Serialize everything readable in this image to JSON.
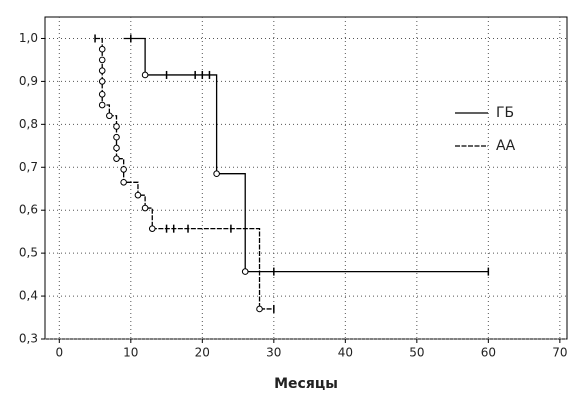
{
  "chart_data": {
    "type": "survival-step",
    "x_label": "Месяцы",
    "xlim": [
      -2,
      71
    ],
    "ylim": [
      0.3,
      1.05
    ],
    "xticks": [
      0,
      10,
      20,
      30,
      40,
      50,
      60,
      70
    ],
    "yticks": [
      {
        "value": 0.3,
        "label": "0,3"
      },
      {
        "value": 0.4,
        "label": "0,4"
      },
      {
        "value": 0.5,
        "label": "0,5"
      },
      {
        "value": 0.6,
        "label": "0,6"
      },
      {
        "value": 0.7,
        "label": "0,7"
      },
      {
        "value": 0.8,
        "label": "0,8"
      },
      {
        "value": 0.9,
        "label": "0,9"
      },
      {
        "value": 1.0,
        "label": "1,0"
      }
    ],
    "grid": true,
    "series": [
      {
        "name": "ГБ",
        "color": "#000000",
        "dash": false,
        "x": [
          9,
          12,
          22,
          26,
          60
        ],
        "values": [
          1.0,
          0.915,
          0.685,
          0.457,
          0.457
        ],
        "censored_x": [
          10,
          15,
          19,
          20,
          21,
          30,
          60
        ],
        "censored_values": [
          1.0,
          0.915,
          0.915,
          0.915,
          0.915,
          0.457,
          0.457
        ]
      },
      {
        "name": "АА",
        "color": "#000000",
        "dash": true,
        "x": [
          5,
          6,
          6,
          6,
          6,
          6,
          6,
          7,
          8,
          8,
          8,
          8,
          9,
          9,
          11,
          12,
          13,
          28,
          30
        ],
        "values": [
          1.0,
          0.975,
          0.95,
          0.925,
          0.9,
          0.87,
          0.845,
          0.82,
          0.795,
          0.77,
          0.745,
          0.72,
          0.695,
          0.665,
          0.635,
          0.605,
          0.557,
          0.37,
          0.37
        ],
        "censored_x": [
          5,
          15,
          16,
          18,
          24,
          30
        ],
        "censored_values": [
          1.0,
          0.557,
          0.557,
          0.557,
          0.557,
          0.37
        ]
      }
    ]
  }
}
